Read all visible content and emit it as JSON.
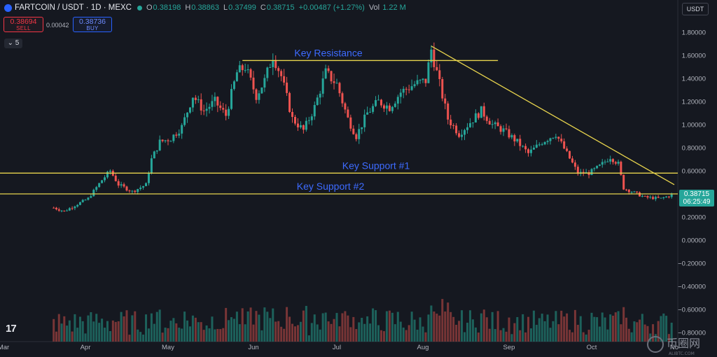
{
  "header": {
    "symbol": "FARTCOIN / USDT · 1D · MEXC",
    "open_label": "O",
    "open": "0.38198",
    "high_label": "H",
    "high": "0.38863",
    "low_label": "L",
    "low": "0.37499",
    "close_label": "C",
    "close": "0.38715",
    "change": "+0.00487 (+1.27%)",
    "vol_label": "Vol",
    "vol": "1.22 M"
  },
  "trade": {
    "sell_price": "0.38694",
    "sell_label": "SELL",
    "spread": "0.00042",
    "buy_price": "0.38736",
    "buy_label": "BUY",
    "indicators_count": "5"
  },
  "currency_selector": "USDT",
  "last_price_tag": {
    "price": "0.38715",
    "countdown": "06:25:49"
  },
  "tv_logo": "17",
  "watermark": {
    "text": "币圈网",
    "sub": "ALIBTC.COM"
  },
  "colors": {
    "up": "#26a69a",
    "down": "#ef5350",
    "annotation_line": "#e8d44d",
    "annotation_text": "#3d6bff",
    "background": "#151820"
  },
  "chart_data": {
    "type": "candlestick",
    "title": "",
    "x_ticks": [
      "Mar",
      "Apr",
      "May",
      "Jun",
      "Jul",
      "Aug",
      "Sep",
      "Oct",
      "No"
    ],
    "y_ticks": [
      "1.80000",
      "1.60000",
      "1.40000",
      "1.20000",
      "1.00000",
      "0.80000",
      "0.60000",
      "0.40000",
      "0.20000",
      "0.00000",
      "−0.20000",
      "−0.40000",
      "−0.60000",
      "−0.80000"
    ],
    "ylim": [
      -0.8,
      1.8
    ],
    "grid": false,
    "price_path": [
      {
        "date": "2025-03-20",
        "price": 0.28
      },
      {
        "date": "2025-03-24",
        "price": 0.25
      },
      {
        "date": "2025-03-28",
        "price": 0.3
      },
      {
        "date": "2025-04-02",
        "price": 0.36
      },
      {
        "date": "2025-04-07",
        "price": 0.52
      },
      {
        "date": "2025-04-10",
        "price": 0.6
      },
      {
        "date": "2025-04-13",
        "price": 0.48
      },
      {
        "date": "2025-04-18",
        "price": 0.42
      },
      {
        "date": "2025-04-23",
        "price": 0.48
      },
      {
        "date": "2025-04-25",
        "price": 0.7
      },
      {
        "date": "2025-04-28",
        "price": 0.85
      },
      {
        "date": "2025-05-02",
        "price": 0.88
      },
      {
        "date": "2025-05-06",
        "price": 0.98
      },
      {
        "date": "2025-05-10",
        "price": 1.25
      },
      {
        "date": "2025-05-14",
        "price": 1.12
      },
      {
        "date": "2025-05-18",
        "price": 1.2
      },
      {
        "date": "2025-05-22",
        "price": 1.08
      },
      {
        "date": "2025-05-26",
        "price": 1.45
      },
      {
        "date": "2025-05-29",
        "price": 1.5
      },
      {
        "date": "2025-06-02",
        "price": 1.25
      },
      {
        "date": "2025-06-05",
        "price": 1.38
      },
      {
        "date": "2025-06-08",
        "price": 1.6
      },
      {
        "date": "2025-06-11",
        "price": 1.42
      },
      {
        "date": "2025-06-15",
        "price": 1.05
      },
      {
        "date": "2025-06-19",
        "price": 0.95
      },
      {
        "date": "2025-06-23",
        "price": 1.15
      },
      {
        "date": "2025-06-27",
        "price": 1.45
      },
      {
        "date": "2025-07-01",
        "price": 1.35
      },
      {
        "date": "2025-07-05",
        "price": 1.05
      },
      {
        "date": "2025-07-08",
        "price": 0.9
      },
      {
        "date": "2025-07-12",
        "price": 1.1
      },
      {
        "date": "2025-07-16",
        "price": 1.2
      },
      {
        "date": "2025-07-20",
        "price": 1.15
      },
      {
        "date": "2025-07-24",
        "price": 1.28
      },
      {
        "date": "2025-07-29",
        "price": 1.35
      },
      {
        "date": "2025-08-02",
        "price": 1.38
      },
      {
        "date": "2025-08-04",
        "price": 1.65
      },
      {
        "date": "2025-08-06",
        "price": 1.45
      },
      {
        "date": "2025-08-10",
        "price": 1.05
      },
      {
        "date": "2025-08-14",
        "price": 0.92
      },
      {
        "date": "2025-08-18",
        "price": 1.02
      },
      {
        "date": "2025-08-22",
        "price": 1.12
      },
      {
        "date": "2025-08-26",
        "price": 1.0
      },
      {
        "date": "2025-08-30",
        "price": 0.95
      },
      {
        "date": "2025-09-04",
        "price": 0.85
      },
      {
        "date": "2025-09-08",
        "price": 0.75
      },
      {
        "date": "2025-09-13",
        "price": 0.85
      },
      {
        "date": "2025-09-18",
        "price": 0.92
      },
      {
        "date": "2025-09-22",
        "price": 0.75
      },
      {
        "date": "2025-09-26",
        "price": 0.58
      },
      {
        "date": "2025-09-30",
        "price": 0.58
      },
      {
        "date": "2025-10-04",
        "price": 0.64
      },
      {
        "date": "2025-10-08",
        "price": 0.72
      },
      {
        "date": "2025-10-11",
        "price": 0.66
      },
      {
        "date": "2025-10-13",
        "price": 0.45
      },
      {
        "date": "2025-10-16",
        "price": 0.42
      },
      {
        "date": "2025-10-21",
        "price": 0.37
      },
      {
        "date": "2025-10-27",
        "price": 0.36
      },
      {
        "date": "2025-10-31",
        "price": 0.39
      }
    ],
    "annotations": [
      {
        "type": "hline",
        "label": "Key Resistance",
        "price": 1.555,
        "from": "2025-05-28",
        "to": "2025-08-28"
      },
      {
        "type": "hline",
        "label": "Key Support #1",
        "price": 0.58,
        "from": "full-width",
        "to": "full-width"
      },
      {
        "type": "hline",
        "label": "Key Support #2",
        "price": 0.4,
        "from": "full-width",
        "to": "full-width"
      },
      {
        "type": "trendline",
        "label": "",
        "from": {
          "date": "2025-08-04",
          "price": 1.68
        },
        "to": {
          "date": "2025-11-10",
          "price": 0.48
        }
      }
    ],
    "volume": {
      "shown": true,
      "axis": "none"
    }
  }
}
